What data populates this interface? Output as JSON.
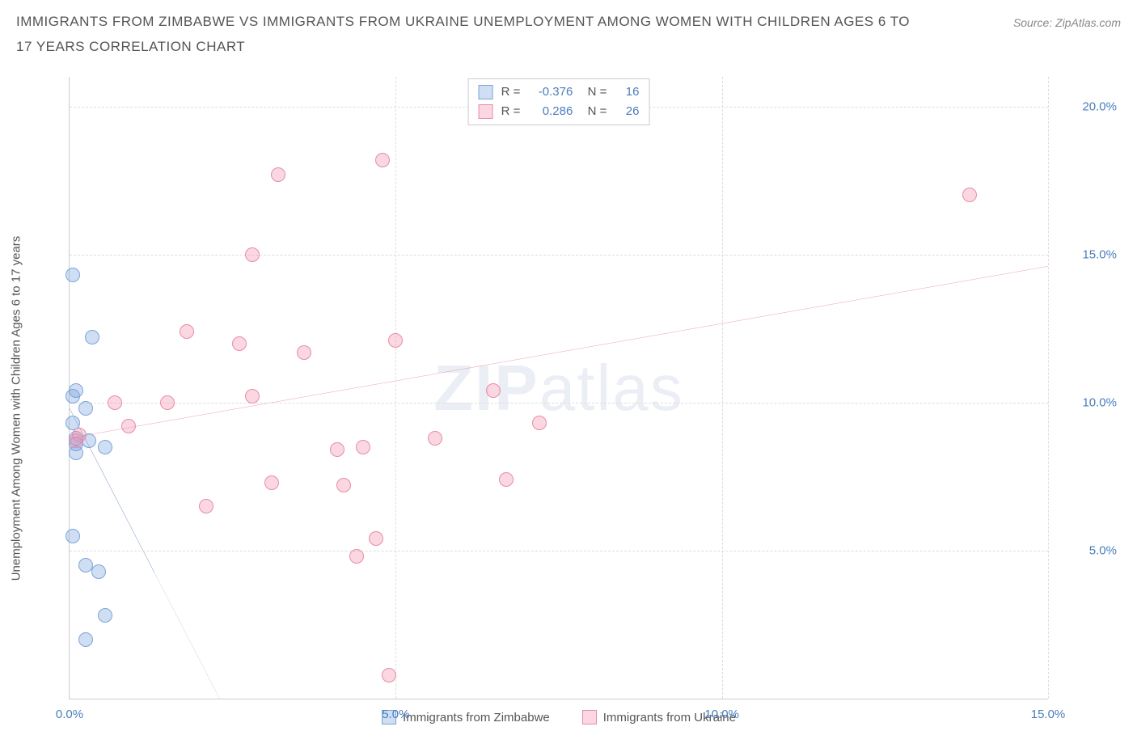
{
  "header": {
    "title": "IMMIGRANTS FROM ZIMBABWE VS IMMIGRANTS FROM UKRAINE UNEMPLOYMENT AMONG WOMEN WITH CHILDREN AGES 6 TO 17 YEARS CORRELATION CHART",
    "source": "Source: ZipAtlas.com"
  },
  "chart": {
    "type": "scatter",
    "y_axis_label": "Unemployment Among Women with Children Ages 6 to 17 years",
    "x_range": [
      0,
      15
    ],
    "y_range": [
      0,
      21
    ],
    "x_ticks": [
      0,
      5,
      10,
      15
    ],
    "x_tick_labels": [
      "0.0%",
      "5.0%",
      "10.0%",
      "15.0%"
    ],
    "y_ticks": [
      5,
      10,
      15,
      20
    ],
    "y_tick_labels": [
      "5.0%",
      "10.0%",
      "15.0%",
      "20.0%"
    ],
    "grid_color": "#dddddd",
    "axis_color": "#cccccc",
    "tick_label_color": "#4a7ebb",
    "background_color": "#ffffff",
    "watermark": "ZIPatlas",
    "series": [
      {
        "name": "Immigrants from Zimbabwe",
        "fill_color": "rgba(120, 160, 220, 0.35)",
        "stroke_color": "#7aa5d8",
        "trend_color": "#2c5fa8",
        "R": "-0.376",
        "N": "16",
        "trend": {
          "x1": 0,
          "y1": 9.8,
          "x2": 2.3,
          "y2": 0,
          "dash_after_x": 1.3
        },
        "points": [
          [
            0.05,
            14.3
          ],
          [
            0.35,
            12.2
          ],
          [
            0.1,
            10.4
          ],
          [
            0.05,
            10.2
          ],
          [
            0.25,
            9.8
          ],
          [
            0.05,
            9.3
          ],
          [
            0.1,
            8.8
          ],
          [
            0.3,
            8.7
          ],
          [
            0.1,
            8.3
          ],
          [
            0.55,
            8.5
          ],
          [
            0.05,
            5.5
          ],
          [
            0.25,
            4.5
          ],
          [
            0.45,
            4.3
          ],
          [
            0.55,
            2.8
          ],
          [
            0.25,
            2.0
          ],
          [
            0.1,
            8.6
          ]
        ]
      },
      {
        "name": "Immigrants from Ukraine",
        "fill_color": "rgba(240, 140, 170, 0.35)",
        "stroke_color": "#e88ca8",
        "trend_color": "#e35a8a",
        "R": "0.286",
        "N": "26",
        "trend": {
          "x1": 0,
          "y1": 8.8,
          "x2": 15,
          "y2": 14.6
        },
        "points": [
          [
            0.1,
            8.7
          ],
          [
            0.15,
            8.9
          ],
          [
            0.9,
            9.2
          ],
          [
            0.7,
            10.0
          ],
          [
            1.5,
            10.0
          ],
          [
            1.8,
            12.4
          ],
          [
            2.1,
            6.5
          ],
          [
            2.6,
            12.0
          ],
          [
            2.8,
            10.2
          ],
          [
            2.8,
            15.0
          ],
          [
            3.1,
            7.3
          ],
          [
            3.2,
            17.7
          ],
          [
            3.6,
            11.7
          ],
          [
            4.1,
            8.4
          ],
          [
            4.2,
            7.2
          ],
          [
            4.4,
            4.8
          ],
          [
            4.7,
            5.4
          ],
          [
            4.8,
            18.2
          ],
          [
            4.9,
            0.8
          ],
          [
            5.0,
            12.1
          ],
          [
            5.6,
            8.8
          ],
          [
            6.5,
            10.4
          ],
          [
            6.7,
            7.4
          ],
          [
            7.2,
            9.3
          ],
          [
            13.8,
            17.0
          ],
          [
            4.5,
            8.5
          ]
        ]
      }
    ],
    "bottom_legend": [
      {
        "swatch_fill": "rgba(120, 160, 220, 0.35)",
        "swatch_stroke": "#7aa5d8",
        "label": "Immigrants from Zimbabwe"
      },
      {
        "swatch_fill": "rgba(240, 140, 170, 0.35)",
        "swatch_stroke": "#e88ca8",
        "label": "Immigrants from Ukraine"
      }
    ]
  }
}
